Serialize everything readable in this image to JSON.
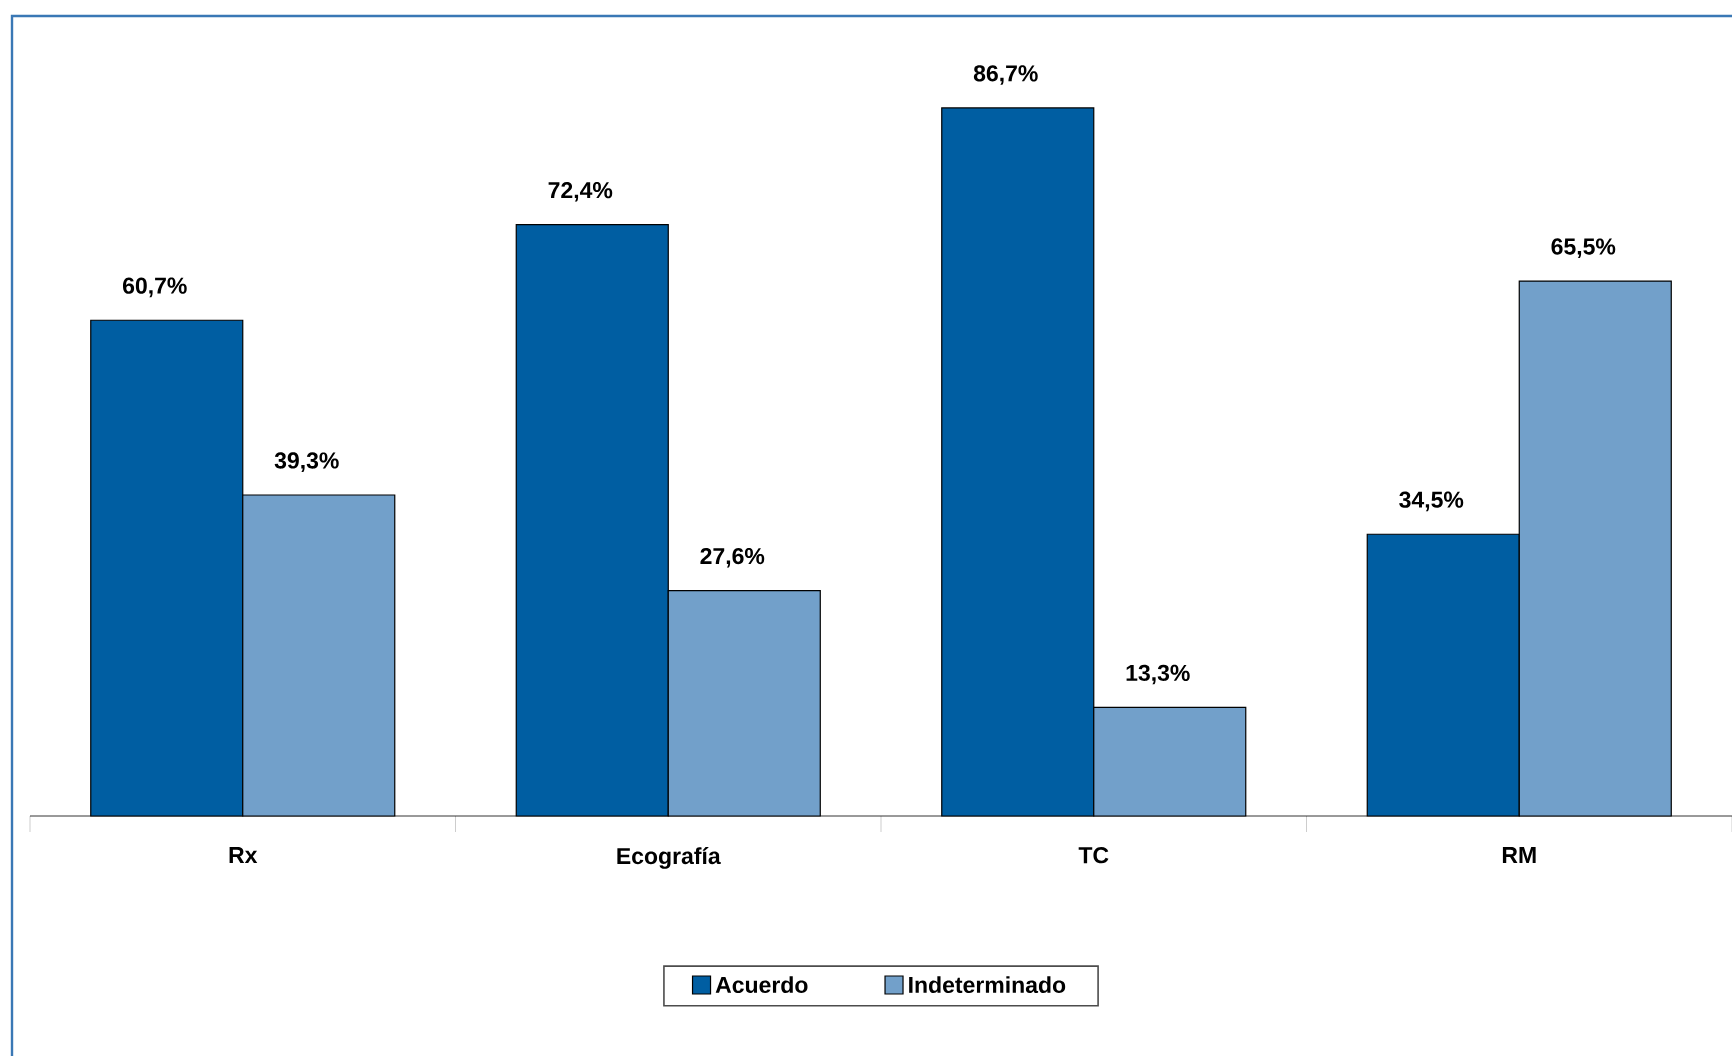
{
  "chart_data": {
    "type": "bar",
    "categories": [
      "Rx",
      "Ecografía",
      "TC",
      "RM"
    ],
    "series": [
      {
        "name": "Acuerdo",
        "color": "#005ea2",
        "values": [
          60.7,
          72.4,
          86.7,
          34.5
        ],
        "value_labels": [
          "60,7%",
          "72,4%",
          "86,7%",
          "34,5%"
        ]
      },
      {
        "name": "Indeterminado",
        "color": "#72a0ca",
        "values": [
          39.3,
          27.6,
          13.3,
          65.5
        ],
        "value_labels": [
          "39,3%",
          "27,6%",
          "13,3%",
          "65,5%"
        ]
      }
    ],
    "legend": "bottom"
  }
}
